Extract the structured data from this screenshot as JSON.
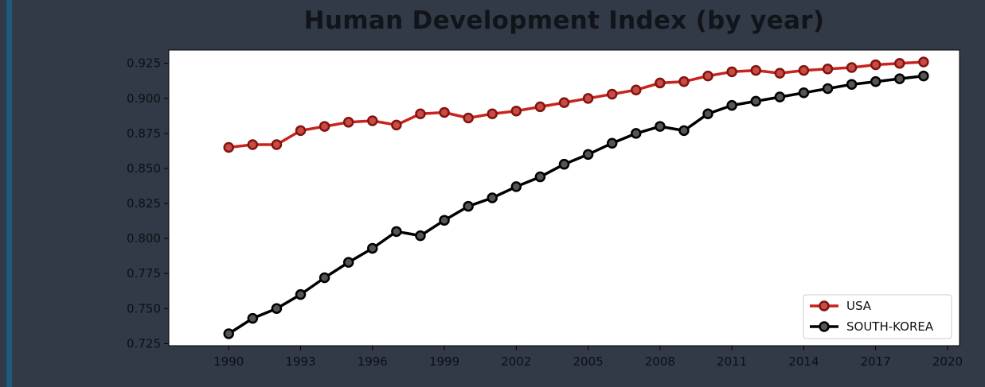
{
  "chart_data": {
    "type": "line",
    "title": "Human Development Index (by year)",
    "xlabel": "",
    "ylabel": "",
    "xlim": [
      1987.5,
      2020.5
    ],
    "ylim": [
      0.7235,
      0.9345
    ],
    "x_ticks": [
      1990,
      1993,
      1996,
      1999,
      2002,
      2005,
      2008,
      2011,
      2014,
      2017,
      2020
    ],
    "y_ticks": [
      0.725,
      0.75,
      0.775,
      0.8,
      0.825,
      0.85,
      0.875,
      0.9,
      0.925
    ],
    "y_tick_labels": [
      "0.725",
      "0.750",
      "0.775",
      "0.800",
      "0.825",
      "0.850",
      "0.875",
      "0.900",
      "0.925"
    ],
    "legend_position": "lower-right",
    "grid": false,
    "x": [
      1990,
      1991,
      1992,
      1993,
      1994,
      1995,
      1996,
      1997,
      1998,
      1999,
      2000,
      2001,
      2002,
      2003,
      2004,
      2005,
      2006,
      2007,
      2008,
      2009,
      2010,
      2011,
      2012,
      2013,
      2014,
      2015,
      2016,
      2017,
      2018,
      2019
    ],
    "series": [
      {
        "name": "USA",
        "color": "#c8231c",
        "marker_fill": "#cc4a44",
        "marker_edge": "#7f1410",
        "values": [
          0.865,
          0.867,
          0.867,
          0.877,
          0.88,
          0.883,
          0.884,
          0.881,
          0.889,
          0.89,
          0.886,
          0.889,
          0.891,
          0.894,
          0.897,
          0.9,
          0.903,
          0.906,
          0.911,
          0.912,
          0.916,
          0.919,
          0.92,
          0.918,
          0.92,
          0.921,
          0.922,
          0.924,
          0.925,
          0.926
        ]
      },
      {
        "name": "SOUTH-KOREA",
        "color": "#000000",
        "marker_fill": "#555555",
        "marker_edge": "#000000",
        "values": [
          0.732,
          0.743,
          0.75,
          0.76,
          0.772,
          0.783,
          0.793,
          0.805,
          0.802,
          0.813,
          0.823,
          0.829,
          0.837,
          0.844,
          0.853,
          0.86,
          0.868,
          0.875,
          0.88,
          0.877,
          0.889,
          0.895,
          0.898,
          0.901,
          0.904,
          0.907,
          0.91,
          0.912,
          0.914,
          0.916
        ]
      }
    ]
  }
}
